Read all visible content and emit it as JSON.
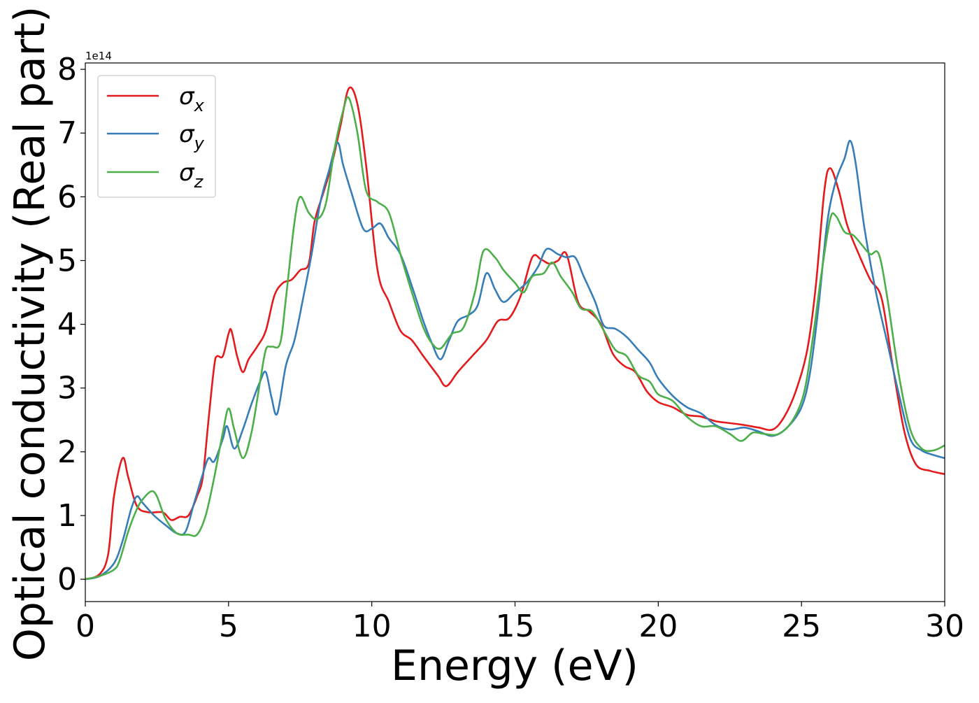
{
  "chart_data": {
    "type": "line",
    "xlabel": "Energy (eV)",
    "ylabel": "Optical conductivity (Real part)",
    "y_offset_text": "1e14",
    "xlim": [
      0,
      30
    ],
    "ylim": [
      -0.35,
      8.1
    ],
    "x_ticks": [
      0,
      5,
      10,
      15,
      20,
      25,
      30
    ],
    "x_tick_labels": [
      "0",
      "5",
      "10",
      "15",
      "20",
      "25",
      "30"
    ],
    "y_ticks": [
      0,
      1,
      2,
      3,
      4,
      5,
      6,
      7,
      8
    ],
    "y_tick_labels": [
      "0",
      "1",
      "2",
      "3",
      "4",
      "5",
      "6",
      "7",
      "8"
    ],
    "grid": false,
    "legend_position": "top-left",
    "series": [
      {
        "name": "σx",
        "legend_symbol": "σ",
        "legend_subscript": "x",
        "color": "#e41a1c",
        "points": [
          [
            0,
            0
          ],
          [
            0.5,
            0.08
          ],
          [
            0.8,
            0.4
          ],
          [
            1.0,
            1.3
          ],
          [
            1.3,
            1.9
          ],
          [
            1.5,
            1.6
          ],
          [
            1.8,
            1.15
          ],
          [
            2.2,
            1.05
          ],
          [
            2.7,
            1.05
          ],
          [
            3.0,
            0.93
          ],
          [
            3.3,
            0.98
          ],
          [
            3.6,
            1.0
          ],
          [
            3.9,
            1.3
          ],
          [
            4.1,
            1.6
          ],
          [
            4.3,
            2.5
          ],
          [
            4.5,
            3.35
          ],
          [
            4.6,
            3.5
          ],
          [
            4.8,
            3.5
          ],
          [
            5.0,
            3.85
          ],
          [
            5.1,
            3.9
          ],
          [
            5.3,
            3.5
          ],
          [
            5.5,
            3.25
          ],
          [
            5.7,
            3.45
          ],
          [
            6.0,
            3.65
          ],
          [
            6.3,
            3.9
          ],
          [
            6.6,
            4.45
          ],
          [
            6.9,
            4.65
          ],
          [
            7.2,
            4.7
          ],
          [
            7.5,
            4.85
          ],
          [
            7.8,
            4.95
          ],
          [
            8.0,
            5.6
          ],
          [
            8.3,
            6.05
          ],
          [
            8.6,
            6.5
          ],
          [
            8.9,
            7.1
          ],
          [
            9.2,
            7.7
          ],
          [
            9.5,
            7.45
          ],
          [
            9.8,
            6.5
          ],
          [
            10.2,
            4.85
          ],
          [
            10.6,
            4.35
          ],
          [
            11.0,
            3.9
          ],
          [
            11.4,
            3.75
          ],
          [
            11.8,
            3.5
          ],
          [
            12.3,
            3.2
          ],
          [
            12.6,
            3.03
          ],
          [
            13.0,
            3.25
          ],
          [
            13.5,
            3.5
          ],
          [
            14.0,
            3.75
          ],
          [
            14.4,
            4.05
          ],
          [
            14.8,
            4.1
          ],
          [
            15.2,
            4.45
          ],
          [
            15.6,
            5.05
          ],
          [
            15.9,
            5.02
          ],
          [
            16.2,
            4.95
          ],
          [
            16.5,
            5.0
          ],
          [
            16.8,
            5.1
          ],
          [
            17.2,
            4.35
          ],
          [
            17.6,
            4.2
          ],
          [
            18.0,
            4.0
          ],
          [
            18.4,
            3.55
          ],
          [
            18.8,
            3.35
          ],
          [
            19.2,
            3.25
          ],
          [
            19.6,
            2.95
          ],
          [
            20.0,
            2.78
          ],
          [
            20.5,
            2.7
          ],
          [
            21.0,
            2.58
          ],
          [
            21.5,
            2.55
          ],
          [
            22.0,
            2.48
          ],
          [
            22.5,
            2.45
          ],
          [
            23.0,
            2.42
          ],
          [
            23.5,
            2.38
          ],
          [
            24.0,
            2.35
          ],
          [
            24.4,
            2.55
          ],
          [
            24.8,
            2.95
          ],
          [
            25.2,
            3.6
          ],
          [
            25.5,
            4.6
          ],
          [
            25.8,
            6.1
          ],
          [
            26.0,
            6.45
          ],
          [
            26.3,
            6.1
          ],
          [
            26.6,
            5.55
          ],
          [
            27.0,
            5.1
          ],
          [
            27.4,
            4.7
          ],
          [
            27.8,
            4.4
          ],
          [
            28.2,
            3.3
          ],
          [
            28.6,
            2.3
          ],
          [
            29.0,
            1.8
          ],
          [
            29.5,
            1.7
          ],
          [
            30.0,
            1.65
          ]
        ]
      },
      {
        "name": "σy",
        "legend_symbol": "σ",
        "legend_subscript": "y",
        "color": "#377eb8",
        "points": [
          [
            0,
            0
          ],
          [
            0.5,
            0.05
          ],
          [
            1.0,
            0.25
          ],
          [
            1.3,
            0.6
          ],
          [
            1.6,
            1.1
          ],
          [
            1.8,
            1.3
          ],
          [
            2.0,
            1.2
          ],
          [
            2.4,
            1.0
          ],
          [
            2.8,
            0.85
          ],
          [
            3.2,
            0.72
          ],
          [
            3.5,
            0.75
          ],
          [
            3.8,
            1.2
          ],
          [
            4.1,
            1.65
          ],
          [
            4.3,
            1.9
          ],
          [
            4.5,
            1.85
          ],
          [
            4.8,
            2.2
          ],
          [
            4.95,
            2.4
          ],
          [
            5.2,
            2.05
          ],
          [
            5.5,
            2.35
          ],
          [
            5.8,
            2.75
          ],
          [
            6.1,
            3.1
          ],
          [
            6.3,
            3.25
          ],
          [
            6.5,
            2.85
          ],
          [
            6.7,
            2.6
          ],
          [
            7.0,
            3.35
          ],
          [
            7.3,
            3.75
          ],
          [
            7.6,
            4.4
          ],
          [
            7.9,
            5.1
          ],
          [
            8.2,
            5.9
          ],
          [
            8.5,
            6.4
          ],
          [
            8.8,
            6.85
          ],
          [
            9.0,
            6.5
          ],
          [
            9.3,
            6.05
          ],
          [
            9.7,
            5.5
          ],
          [
            10.0,
            5.5
          ],
          [
            10.3,
            5.58
          ],
          [
            10.6,
            5.35
          ],
          [
            11.0,
            5.1
          ],
          [
            11.4,
            4.6
          ],
          [
            11.8,
            4.05
          ],
          [
            12.1,
            3.7
          ],
          [
            12.4,
            3.45
          ],
          [
            12.7,
            3.75
          ],
          [
            13.0,
            4.05
          ],
          [
            13.4,
            4.15
          ],
          [
            13.7,
            4.3
          ],
          [
            14.0,
            4.8
          ],
          [
            14.3,
            4.55
          ],
          [
            14.6,
            4.35
          ],
          [
            15.0,
            4.5
          ],
          [
            15.4,
            4.65
          ],
          [
            15.8,
            4.9
          ],
          [
            16.1,
            5.18
          ],
          [
            16.5,
            5.1
          ],
          [
            16.8,
            5.05
          ],
          [
            17.1,
            5.05
          ],
          [
            17.4,
            4.75
          ],
          [
            17.8,
            4.35
          ],
          [
            18.1,
            3.98
          ],
          [
            18.5,
            3.93
          ],
          [
            18.9,
            3.8
          ],
          [
            19.3,
            3.6
          ],
          [
            19.7,
            3.4
          ],
          [
            20.0,
            3.15
          ],
          [
            20.5,
            2.88
          ],
          [
            21.0,
            2.7
          ],
          [
            21.5,
            2.6
          ],
          [
            22.0,
            2.42
          ],
          [
            22.5,
            2.35
          ],
          [
            23.0,
            2.38
          ],
          [
            23.5,
            2.32
          ],
          [
            24.0,
            2.25
          ],
          [
            24.5,
            2.38
          ],
          [
            25.0,
            2.7
          ],
          [
            25.3,
            3.25
          ],
          [
            25.6,
            4.3
          ],
          [
            25.9,
            5.6
          ],
          [
            26.2,
            6.25
          ],
          [
            26.5,
            6.6
          ],
          [
            26.7,
            6.88
          ],
          [
            26.9,
            6.5
          ],
          [
            27.2,
            5.5
          ],
          [
            27.6,
            4.5
          ],
          [
            28.0,
            3.7
          ],
          [
            28.4,
            2.9
          ],
          [
            28.8,
            2.2
          ],
          [
            29.2,
            2.02
          ],
          [
            29.6,
            1.95
          ],
          [
            30.0,
            1.9
          ]
        ]
      },
      {
        "name": "σz",
        "legend_symbol": "σ",
        "legend_subscript": "z",
        "color": "#4daf4a",
        "points": [
          [
            0,
            0
          ],
          [
            0.5,
            0.05
          ],
          [
            1.0,
            0.15
          ],
          [
            1.2,
            0.3
          ],
          [
            1.5,
            0.75
          ],
          [
            1.8,
            1.1
          ],
          [
            2.0,
            1.25
          ],
          [
            2.3,
            1.38
          ],
          [
            2.5,
            1.3
          ],
          [
            2.8,
            0.95
          ],
          [
            3.2,
            0.72
          ],
          [
            3.6,
            0.7
          ],
          [
            3.9,
            0.7
          ],
          [
            4.2,
            1.0
          ],
          [
            4.5,
            1.6
          ],
          [
            4.8,
            2.3
          ],
          [
            5.0,
            2.68
          ],
          [
            5.2,
            2.35
          ],
          [
            5.5,
            1.9
          ],
          [
            5.8,
            2.3
          ],
          [
            6.1,
            3.1
          ],
          [
            6.3,
            3.6
          ],
          [
            6.5,
            3.65
          ],
          [
            6.8,
            3.7
          ],
          [
            7.0,
            4.4
          ],
          [
            7.3,
            5.6
          ],
          [
            7.5,
            6.0
          ],
          [
            7.8,
            5.75
          ],
          [
            8.1,
            5.65
          ],
          [
            8.4,
            5.9
          ],
          [
            8.7,
            6.75
          ],
          [
            9.0,
            7.35
          ],
          [
            9.2,
            7.55
          ],
          [
            9.5,
            7.0
          ],
          [
            9.8,
            6.1
          ],
          [
            10.2,
            5.92
          ],
          [
            10.6,
            5.75
          ],
          [
            11.0,
            5.1
          ],
          [
            11.4,
            4.5
          ],
          [
            11.8,
            3.95
          ],
          [
            12.1,
            3.7
          ],
          [
            12.4,
            3.62
          ],
          [
            12.8,
            3.85
          ],
          [
            13.2,
            3.95
          ],
          [
            13.6,
            4.5
          ],
          [
            13.9,
            5.15
          ],
          [
            14.3,
            5.05
          ],
          [
            14.6,
            4.85
          ],
          [
            15.0,
            4.65
          ],
          [
            15.3,
            4.5
          ],
          [
            15.6,
            4.75
          ],
          [
            16.0,
            4.8
          ],
          [
            16.3,
            4.97
          ],
          [
            16.6,
            4.75
          ],
          [
            17.0,
            4.5
          ],
          [
            17.3,
            4.25
          ],
          [
            17.7,
            4.2
          ],
          [
            18.1,
            3.9
          ],
          [
            18.5,
            3.6
          ],
          [
            18.9,
            3.5
          ],
          [
            19.3,
            3.2
          ],
          [
            19.7,
            3.1
          ],
          [
            20.0,
            2.9
          ],
          [
            20.5,
            2.8
          ],
          [
            21.0,
            2.55
          ],
          [
            21.5,
            2.4
          ],
          [
            22.0,
            2.4
          ],
          [
            22.5,
            2.28
          ],
          [
            22.9,
            2.17
          ],
          [
            23.3,
            2.3
          ],
          [
            23.7,
            2.28
          ],
          [
            24.2,
            2.28
          ],
          [
            24.7,
            2.5
          ],
          [
            25.1,
            2.95
          ],
          [
            25.4,
            3.8
          ],
          [
            25.7,
            4.8
          ],
          [
            26.0,
            5.65
          ],
          [
            26.2,
            5.7
          ],
          [
            26.5,
            5.45
          ],
          [
            26.8,
            5.4
          ],
          [
            27.1,
            5.25
          ],
          [
            27.4,
            5.1
          ],
          [
            27.7,
            5.1
          ],
          [
            28.0,
            4.4
          ],
          [
            28.4,
            3.2
          ],
          [
            28.8,
            2.35
          ],
          [
            29.2,
            2.05
          ],
          [
            29.6,
            2.02
          ],
          [
            30.0,
            2.1
          ]
        ]
      }
    ]
  }
}
